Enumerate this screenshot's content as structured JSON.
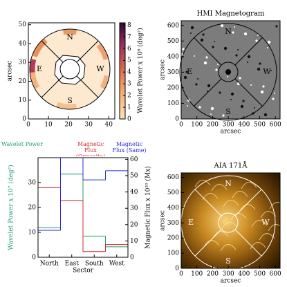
{
  "chart_data": [
    {
      "type": "heatmap",
      "ylabel": "arcsec",
      "xlim": [
        0,
        43
      ],
      "xticks": [
        0,
        10,
        20,
        30,
        40
      ],
      "ylim": [
        0,
        51
      ],
      "yticks": [
        0,
        10,
        20,
        30,
        40,
        50
      ],
      "sector_labels": [
        "N",
        "E",
        "W",
        "S"
      ],
      "colorbar": {
        "label": "Wavelet Power x 10⁶ (deg²)",
        "lim": [
          0,
          8.2
        ],
        "ticks": [
          0,
          1,
          2,
          3,
          4,
          5,
          6,
          7,
          8
        ]
      }
    },
    {
      "type": "image",
      "title": "HMI Magnetogram",
      "xlabel": "arcsec",
      "ylabel": "arcsec",
      "xlim": [
        0,
        630
      ],
      "xticks": [
        0,
        100,
        200,
        300,
        400,
        500,
        600
      ],
      "ylim": [
        0,
        630
      ],
      "yticks": [
        0,
        100,
        200,
        300,
        400,
        500,
        600
      ],
      "sector_labels": [
        "N",
        "E",
        "W",
        "S"
      ]
    },
    {
      "type": "step",
      "xlabel": "Sector",
      "ylabel": "Wavelet Power x 10⁷ (deg²)",
      "y2label": "Magnetic Flux x 10²⁰ (Mx)",
      "categories": [
        "North",
        "East",
        "South",
        "West"
      ],
      "series": [
        {
          "name": "Wavelet Power",
          "color": "#1f9e6a",
          "values": [
            11.9,
            33.4,
            8.5,
            4.2
          ]
        },
        {
          "name": "Magnetic Flux (Opposite)",
          "color": "#d02828",
          "axis": "y2",
          "values": [
            42.6,
            34.8,
            3.5,
            7.8
          ]
        },
        {
          "name": "Magnetic Flux (Same)",
          "color": "#2828e0",
          "axis": "y2",
          "values": [
            16.5,
            61,
            47.4,
            53
          ]
        }
      ],
      "ylim": [
        0,
        40
      ],
      "yticks": [
        0,
        10,
        20,
        30
      ],
      "y2lim": [
        0,
        61
      ],
      "y2ticks": [
        0,
        10,
        20,
        30,
        40,
        50,
        60
      ]
    },
    {
      "type": "image",
      "title": "AIA 171Å",
      "xlabel": "arcsec",
      "ylabel": "arcsec",
      "xlim": [
        0,
        630
      ],
      "xticks": [
        0,
        100,
        200,
        300,
        400,
        500,
        600
      ],
      "ylim": [
        0,
        630
      ],
      "yticks": [
        0,
        100,
        200,
        300,
        400,
        500,
        600
      ],
      "sector_labels": [
        "N",
        "E",
        "W",
        "S"
      ]
    }
  ]
}
